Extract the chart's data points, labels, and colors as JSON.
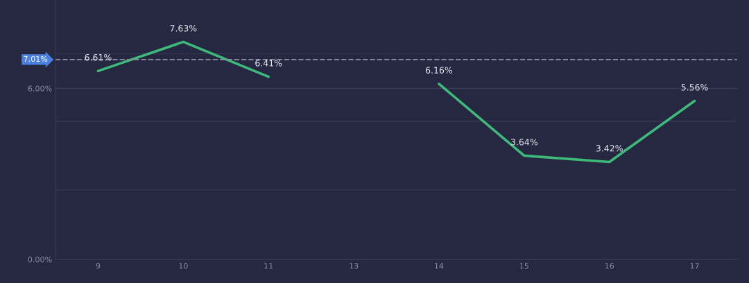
{
  "chart_data": {
    "type": "line",
    "categories": [
      "9",
      "10",
      "11",
      "13",
      "14",
      "15",
      "16",
      "17"
    ],
    "series": [
      {
        "color": "#3dba7a",
        "values": [
          6.61,
          7.63,
          6.41,
          null,
          6.16,
          3.64,
          3.42,
          5.56
        ],
        "value_labels": [
          "6.61%",
          "7.63%",
          "6.41%",
          null,
          "6.16%",
          "3.64%",
          "3.42%",
          "5.56%"
        ]
      }
    ],
    "ylim": [
      0,
      9.1
    ],
    "yticks": [
      {
        "value": 0,
        "label": "0.00%"
      },
      {
        "value": 2.44,
        "label": null
      },
      {
        "value": 4.85,
        "label": null
      },
      {
        "value": 6,
        "label": "6.00%"
      },
      {
        "value": 7.22,
        "label": null
      }
    ],
    "ref_lines": [
      {
        "axis": "y",
        "value": 7.01,
        "label": "7.01%",
        "color": "#8a8da0",
        "line_style": "dashed"
      }
    ],
    "grid": "y",
    "line_style": "solid",
    "marker": "none"
  }
}
